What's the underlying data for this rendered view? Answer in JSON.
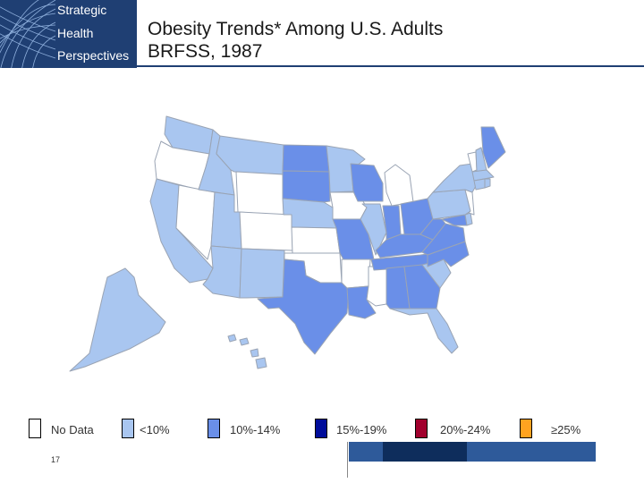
{
  "logo": {
    "line1": "Strategic",
    "line2": "Health",
    "line3": "Perspectives",
    "graphic": "globe-grid"
  },
  "title": {
    "line1": "Obesity Trends* Among U.S. Adults",
    "line2": "BRFSS, 1987"
  },
  "colors": {
    "no_data": "#ffffff",
    "lt10": "#a9c6f0",
    "r10_14": "#6a8fe8",
    "r15_19": "#000c9a",
    "r20_24": "#a1002d",
    "ge25": "#ffa320",
    "border": "#9aa4b4"
  },
  "legend": [
    {
      "label": "No Data",
      "color": "#ffffff"
    },
    {
      "label": "<10%",
      "color": "#a9c6f0"
    },
    {
      "label": "10%-14%",
      "color": "#6a8fe8"
    },
    {
      "label": "15%-19%",
      "color": "#000c9a"
    },
    {
      "label": "20%-24%",
      "color": "#a1002d"
    },
    {
      "label": "≥25%",
      "color": "#ffa320"
    }
  ],
  "page_number": "17",
  "states": {
    "no_data": [
      "OR",
      "NV",
      "WY",
      "CO",
      "KS",
      "OK",
      "AR",
      "MS",
      "IA",
      "MI",
      "NJ",
      "VT"
    ],
    "lt10": [
      "WA",
      "ID",
      "MT",
      "UT",
      "AZ",
      "NM",
      "CA",
      "AK",
      "HI",
      "MN",
      "NE",
      "NY",
      "MA",
      "CT",
      "RI",
      "NH",
      "SC",
      "FL",
      "IL",
      "PA",
      "DE"
    ],
    "r10_14": [
      "ND",
      "SD",
      "WI",
      "MO",
      "IN",
      "OH",
      "KY",
      "TN",
      "AL",
      "GA",
      "NC",
      "VA",
      "WV",
      "MD",
      "ME",
      "TX",
      "LA"
    ]
  }
}
